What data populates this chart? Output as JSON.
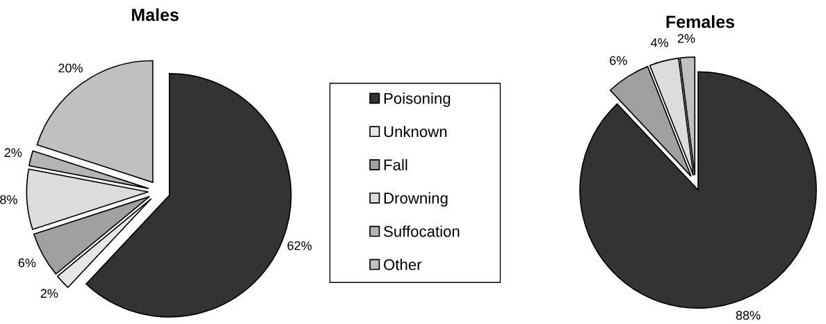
{
  "chart_data": [
    {
      "type": "pie",
      "title": "Males",
      "categories": [
        "Poisoning",
        "Unknown",
        "Fall",
        "Drowning",
        "Suffocation",
        "Other"
      ],
      "values": [
        62,
        2,
        6,
        8,
        2,
        20
      ],
      "colors": [
        "#333333",
        "#e6e6e6",
        "#a0a0a0",
        "#dcdcdc",
        "#b4b4b4",
        "#c0c0c0"
      ],
      "value_labels": [
        "62%",
        "2%",
        "6%",
        "8%",
        "2%",
        "20%"
      ],
      "legend": "right"
    },
    {
      "type": "pie",
      "title": "Females",
      "categories": [
        null,
        null,
        null,
        null
      ],
      "values": [
        88,
        6,
        4,
        2
      ],
      "colors": [
        "#333333",
        "#a0a0a0",
        "#dcdcdc",
        "#c0c0c0"
      ],
      "value_labels": [
        "88%",
        "6%",
        "4%",
        "2%"
      ]
    }
  ]
}
